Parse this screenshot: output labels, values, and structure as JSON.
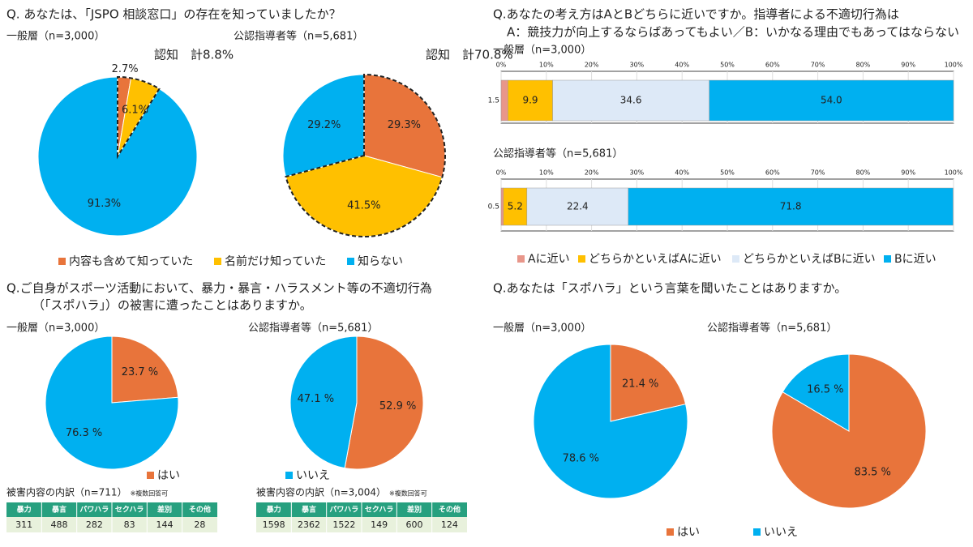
{
  "questions": [
    [
      "Q. あなたは、「JSPO 相談窓口」の存在を知っていましたか？"
    ],
    [
      "Q.あなたの考え方はAとBどちらに近いですか。指導者による不適切行為は",
      "A：競技力が向上するならばあってもよい／B：いかなる理由でもあってはならない"
    ],
    [
      "Q.ご自身がスポーツ活動において、暴力・暴言・ハラスメント等の不適切行為",
      "（「スポハラ」）の被害に遭ったことはありますか。"
    ],
    [
      "Q.あなたは「スポハラ」という言葉を聞いたことはありますか。"
    ]
  ],
  "chart_data": [
    {
      "type": "pie",
      "subtitle": "一般層（n=3,000）",
      "annotation": "認知　計8.8%",
      "categories": [
        "内容も含めて知っていた",
        "名前だけ知っていた",
        "知らない"
      ],
      "colors": [
        "#e8743b",
        "#ffc000",
        "#00b0f0"
      ],
      "values": [
        2.7,
        6.1,
        91.3
      ],
      "value_labels": [
        "2.7%",
        "6.1%",
        "91.3%"
      ]
    },
    {
      "type": "pie",
      "subtitle": "公認指導者等（n=5,681）",
      "annotation": "認知　計70.8%",
      "categories": [
        "内容も含めて知っていた",
        "名前だけ知っていた",
        "知らない"
      ],
      "colors": [
        "#e8743b",
        "#ffc000",
        "#00b0f0"
      ],
      "values": [
        29.3,
        41.5,
        29.2
      ],
      "value_labels": [
        "29.3%",
        "41.5%",
        "29.2%"
      ]
    },
    {
      "type": "pie",
      "subtitle": "一般層（n=3,000）",
      "categories": [
        "はい",
        "いいえ"
      ],
      "colors": [
        "#e8743b",
        "#00b0f0"
      ],
      "values": [
        23.7,
        76.3
      ],
      "value_labels": [
        "23.7 %",
        "76.3 %"
      ]
    },
    {
      "type": "pie",
      "subtitle": "公認指導者等（n=5,681）",
      "categories": [
        "はい",
        "いいえ"
      ],
      "colors": [
        "#e8743b",
        "#00b0f0"
      ],
      "values": [
        52.9,
        47.1
      ],
      "value_labels": [
        "52.9 %",
        "47.1 %"
      ]
    },
    {
      "type": "pie",
      "subtitle": "一般層（n=3,000）",
      "categories": [
        "はい",
        "いいえ"
      ],
      "colors": [
        "#e8743b",
        "#00b0f0"
      ],
      "values": [
        21.4,
        78.6
      ],
      "value_labels": [
        "21.4 %",
        "78.6 %"
      ]
    },
    {
      "type": "pie",
      "subtitle": "公認指導者等（n=5,681）",
      "categories": [
        "はい",
        "いいえ"
      ],
      "colors": [
        "#e8743b",
        "#00b0f0"
      ],
      "values": [
        83.5,
        16.5
      ],
      "value_labels": [
        "83.5 %",
        "16.5 %"
      ]
    },
    {
      "type": "stacked_bar",
      "subtitle": "一般層（n=3,000）",
      "xlim": [
        0,
        100
      ],
      "xticks": [
        {
          "value": 0,
          "label": "0%"
        },
        {
          "value": 10,
          "label": "10%"
        },
        {
          "value": 20,
          "label": "20%"
        },
        {
          "value": 30,
          "label": "30%"
        },
        {
          "value": 40,
          "label": "40%"
        },
        {
          "value": 50,
          "label": "50%"
        },
        {
          "value": 60,
          "label": "60%"
        },
        {
          "value": 70,
          "label": "70%"
        },
        {
          "value": 80,
          "label": "80%"
        },
        {
          "value": 90,
          "label": "90%"
        },
        {
          "value": 100,
          "label": "100%"
        }
      ],
      "series": [
        {
          "name": "Aに近い",
          "color": "#e8968a",
          "values": [
            1.5
          ]
        },
        {
          "name": "どちらかといえばAに近い",
          "color": "#ffc000",
          "values": [
            9.9
          ]
        },
        {
          "name": "どちらかといえばBに近い",
          "color": "#dde9f7",
          "values": [
            34.6
          ]
        },
        {
          "name": "Bに近い",
          "color": "#00b0f0",
          "values": [
            54.0
          ],
          "value_labels": [
            "54.0"
          ]
        }
      ]
    },
    {
      "type": "stacked_bar",
      "subtitle": "公認指導者等（n=5,681）",
      "xlim": [
        0,
        100
      ],
      "xticks": [
        {
          "value": 0,
          "label": "0%"
        },
        {
          "value": 10,
          "label": "10%"
        },
        {
          "value": 20,
          "label": "20%"
        },
        {
          "value": 30,
          "label": "30%"
        },
        {
          "value": 40,
          "label": "40%"
        },
        {
          "value": 50,
          "label": "50%"
        },
        {
          "value": 60,
          "label": "60%"
        },
        {
          "value": 70,
          "label": "70%"
        },
        {
          "value": 80,
          "label": "80%"
        },
        {
          "value": 90,
          "label": "90%"
        },
        {
          "value": 100,
          "label": "100%"
        }
      ],
      "series": [
        {
          "name": "Aに近い",
          "color": "#e8968a",
          "values": [
            0.5
          ]
        },
        {
          "name": "どちらかといえばAに近い",
          "color": "#ffc000",
          "values": [
            5.2
          ]
        },
        {
          "name": "どちらかといえばBに近い",
          "color": "#dde9f7",
          "values": [
            22.4
          ]
        },
        {
          "name": "Bに近い",
          "color": "#00b0f0",
          "values": [
            71.8
          ]
        }
      ]
    }
  ],
  "tables": [
    {
      "title": "被害内容の内訳（n=711）",
      "note": "※複数回答可",
      "headers": [
        "暴力",
        "暴言",
        "パワハラ",
        "セクハラ",
        "差別",
        "その他"
      ],
      "rows": [
        [
          311,
          488,
          282,
          83,
          144,
          28
        ]
      ]
    },
    {
      "title": "被害内容の内訳（n=3,004）",
      "note": "※複数回答可",
      "headers": [
        "暴力",
        "暴言",
        "パワハラ",
        "セクハラ",
        "差別",
        "その他"
      ],
      "rows": [
        [
          1598,
          2362,
          1522,
          149,
          600,
          124
        ]
      ]
    }
  ]
}
